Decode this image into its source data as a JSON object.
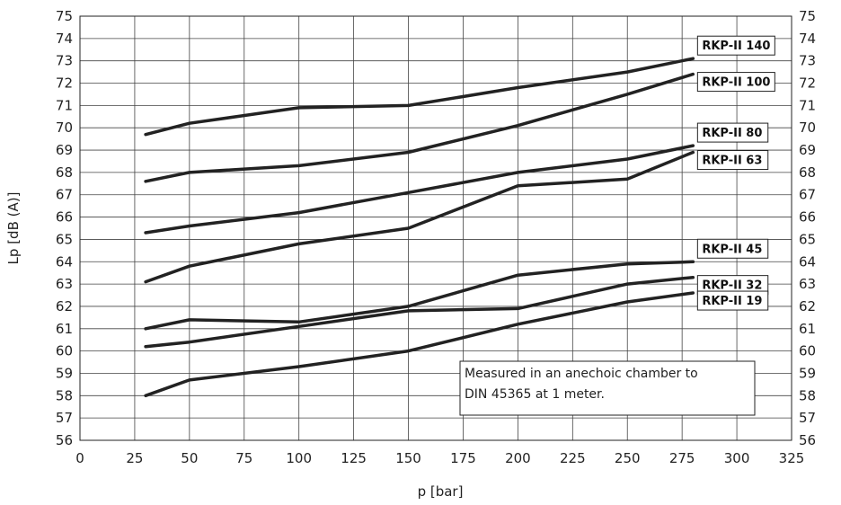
{
  "chart_data": {
    "type": "line",
    "xlabel": "p [bar]",
    "ylabel": "Lp [dB (A)]",
    "xlim": [
      0,
      325
    ],
    "ylim": [
      56,
      75
    ],
    "x_ticks": [
      0,
      25,
      50,
      75,
      100,
      125,
      150,
      175,
      200,
      225,
      250,
      275,
      300,
      325
    ],
    "y_ticks": [
      56,
      57,
      58,
      59,
      60,
      61,
      62,
      63,
      64,
      65,
      66,
      67,
      68,
      69,
      70,
      71,
      72,
      73,
      74,
      75
    ],
    "grid": true,
    "line_color": "#222222",
    "series": [
      {
        "name": "RKP-II 140",
        "x": [
          30,
          50,
          100,
          150,
          200,
          250,
          280
        ],
        "y": [
          69.7,
          70.2,
          70.9,
          71.0,
          71.8,
          72.5,
          73.1
        ]
      },
      {
        "name": "RKP-II 100",
        "x": [
          30,
          50,
          100,
          150,
          200,
          250,
          280
        ],
        "y": [
          67.6,
          68.0,
          68.3,
          68.9,
          70.1,
          71.5,
          72.4
        ]
      },
      {
        "name": "RKP-II 80",
        "x": [
          30,
          50,
          100,
          150,
          200,
          250,
          280
        ],
        "y": [
          65.3,
          65.6,
          66.2,
          67.1,
          68.0,
          68.6,
          69.2
        ]
      },
      {
        "name": "RKP-II 63",
        "x": [
          30,
          50,
          100,
          150,
          200,
          250,
          280
        ],
        "y": [
          63.1,
          63.8,
          64.8,
          65.5,
          67.4,
          67.7,
          68.9
        ]
      },
      {
        "name": "RKP-II 45",
        "x": [
          30,
          50,
          100,
          150,
          200,
          250,
          280
        ],
        "y": [
          61.0,
          61.4,
          61.3,
          62.0,
          63.4,
          63.9,
          64.0
        ]
      },
      {
        "name": "RKP-II 32",
        "x": [
          30,
          50,
          100,
          150,
          200,
          250,
          280
        ],
        "y": [
          60.2,
          60.4,
          61.1,
          61.8,
          61.9,
          63.0,
          63.3
        ]
      },
      {
        "name": "RKP-II 19",
        "x": [
          30,
          50,
          100,
          150,
          200,
          250,
          280
        ],
        "y": [
          58.0,
          58.7,
          59.3,
          60.0,
          61.2,
          62.2,
          62.6
        ]
      }
    ],
    "annotations": [
      "Measured in an anechoic chamber to",
      "DIN 45365 at 1 meter."
    ]
  }
}
